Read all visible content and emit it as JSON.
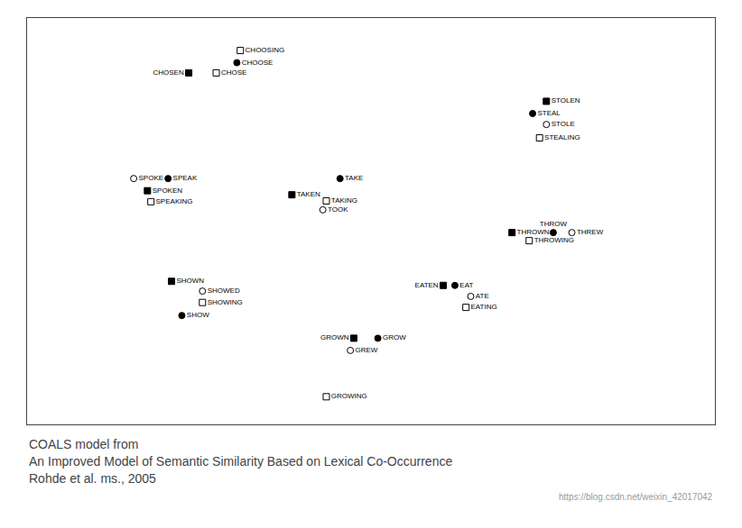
{
  "chart_data": {
    "type": "scatter",
    "x": [
      3.1,
      3.05,
      2.35,
      2.75,
      7.55,
      7.35,
      7.55,
      7.45,
      1.55,
      2.05,
      1.75,
      1.8,
      4.55,
      3.85,
      4.35,
      4.3,
      7.05,
      7.65,
      7.92,
      7.3,
      2.1,
      2.55,
      2.55,
      2.25,
      6.05,
      6.22,
      6.45,
      6.38,
      4.75,
      5.1,
      4.7,
      4.35
    ],
    "values": [
      9.2,
      8.9,
      8.65,
      8.65,
      7.95,
      7.65,
      7.38,
      7.05,
      6.05,
      6.05,
      5.75,
      5.48,
      6.05,
      5.65,
      5.5,
      5.28,
      4.72,
      4.72,
      4.72,
      4.52,
      3.52,
      3.28,
      3.0,
      2.68,
      3.42,
      3.42,
      3.15,
      2.88,
      2.12,
      2.12,
      1.82,
      0.68
    ],
    "labels": [
      "CHOOSING",
      "CHOOSE",
      "CHOSEN",
      "CHOSE",
      "STOLEN",
      "STEAL",
      "STOLE",
      "STEALING",
      "SPOKE",
      "SPEAK",
      "SPOKEN",
      "SPEAKING",
      "TAKE",
      "TAKEN",
      "TAKING",
      "TOOK",
      "THROWN",
      "THROW",
      "THREW",
      "THROWING",
      "SHOWN",
      "SHOWED",
      "SHOWING",
      "SHOW",
      "EATEN",
      "EAT",
      "ATE",
      "EATING",
      "GROWN",
      "GROW",
      "GREW",
      "GROWING"
    ],
    "markers": [
      "square_open",
      "circle_filled",
      "square_filled",
      "square_open",
      "square_filled",
      "circle_filled",
      "circle_open",
      "square_open",
      "circle_open",
      "circle_filled",
      "square_filled",
      "square_open",
      "circle_filled",
      "square_filled",
      "square_open",
      "circle_open",
      "square_filled",
      "circle_filled",
      "circle_open",
      "square_open",
      "square_filled",
      "circle_open",
      "square_open",
      "circle_filled",
      "square_filled",
      "circle_filled",
      "circle_open",
      "square_open",
      "square_filled",
      "circle_filled",
      "circle_open",
      "square_open"
    ],
    "color": "#000000",
    "xlim": [
      0,
      10
    ],
    "ylim": [
      0,
      10
    ],
    "xticks": [],
    "yticks": [],
    "tick_labels": false,
    "grid": false,
    "caption": [
      "COALS model from",
      "An Improved Model of Semantic Similarity Based on Lexical Co-Occurrence",
      "Rohde et al. ms., 2005"
    ],
    "watermark": "https://blog.csdn.net/weixin_42017042"
  }
}
